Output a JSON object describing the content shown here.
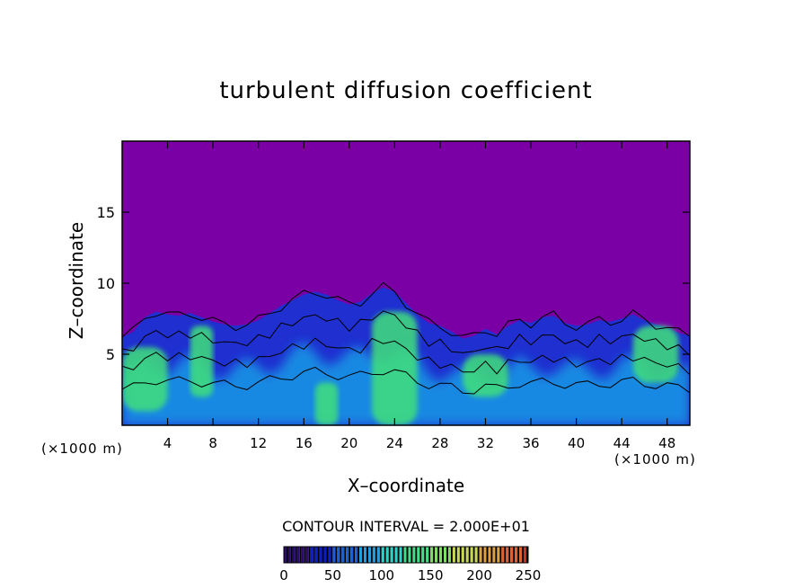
{
  "chart_data": {
    "type": "heatmap",
    "title": "turbulent diffusion coefficient",
    "xlabel": "X–coordinate",
    "ylabel": "Z–coordinate",
    "x_unit_label_left": "(×1000 m)",
    "x_unit_label_right": "(×1000 m)",
    "xlim": [
      0,
      50
    ],
    "ylim": [
      0,
      20
    ],
    "x_ticks": [
      4,
      8,
      12,
      16,
      20,
      24,
      28,
      32,
      36,
      40,
      44,
      48
    ],
    "y_ticks": [
      5,
      10,
      15
    ],
    "contour_interval_label": "CONTOUR INTERVAL = 2.000E+01",
    "colorbar": {
      "min": 0,
      "max": 250,
      "ticks": [
        0,
        50,
        100,
        150,
        200,
        250
      ],
      "colors": [
        "#2a0a6e",
        "#0b1fc8",
        "#1a5fd8",
        "#1ea0e0",
        "#2bd3c8",
        "#3ee08a",
        "#7fe060",
        "#c8d850",
        "#e0a040",
        "#e06030",
        "#c83020"
      ]
    },
    "colors": {
      "background": "#7a00a6",
      "low": "#1f2fd0",
      "mid": "#18a8e8",
      "high": "#3fe07a"
    },
    "turbulent_layer_top": [
      [
        0,
        6.2
      ],
      [
        1,
        6.6
      ],
      [
        2,
        7.6
      ],
      [
        3,
        8.0
      ],
      [
        4,
        7.8
      ],
      [
        5,
        7.7
      ],
      [
        6,
        7.9
      ],
      [
        7,
        7.6
      ],
      [
        8,
        7.3
      ],
      [
        9,
        7.1
      ],
      [
        10,
        7.0
      ],
      [
        11,
        7.1
      ],
      [
        12,
        7.4
      ],
      [
        13,
        7.9
      ],
      [
        14,
        8.4
      ],
      [
        15,
        8.8
      ],
      [
        16,
        9.2
      ],
      [
        17,
        9.4
      ],
      [
        18,
        9.2
      ],
      [
        19,
        8.8
      ],
      [
        20,
        8.5
      ],
      [
        21,
        8.7
      ],
      [
        22,
        9.3
      ],
      [
        23,
        9.7
      ],
      [
        24,
        9.4
      ],
      [
        25,
        8.6
      ],
      [
        26,
        7.8
      ],
      [
        27,
        7.2
      ],
      [
        28,
        7.0
      ],
      [
        29,
        6.6
      ],
      [
        30,
        6.1
      ],
      [
        31,
        6.3
      ],
      [
        32,
        6.8
      ],
      [
        33,
        6.4
      ],
      [
        34,
        7.0
      ],
      [
        35,
        7.4
      ],
      [
        36,
        7.2
      ],
      [
        37,
        7.6
      ],
      [
        38,
        7.7
      ],
      [
        39,
        7.2
      ],
      [
        40,
        7.0
      ],
      [
        41,
        7.1
      ],
      [
        42,
        7.4
      ],
      [
        43,
        7.3
      ],
      [
        44,
        7.5
      ],
      [
        45,
        7.8
      ],
      [
        46,
        7.4
      ],
      [
        47,
        7.1
      ],
      [
        48,
        6.9
      ],
      [
        49,
        6.5
      ],
      [
        50,
        6.3
      ]
    ],
    "high_value_regions": [
      {
        "x_range": [
          0,
          4
        ],
        "z_range": [
          1,
          5.5
        ]
      },
      {
        "x_range": [
          6,
          8
        ],
        "z_range": [
          2,
          7
        ]
      },
      {
        "x_range": [
          17,
          19
        ],
        "z_range": [
          0,
          3
        ]
      },
      {
        "x_range": [
          22,
          26
        ],
        "z_range": [
          0,
          8
        ]
      },
      {
        "x_range": [
          30,
          34
        ],
        "z_range": [
          2,
          5
        ]
      },
      {
        "x_range": [
          45,
          49
        ],
        "z_range": [
          3,
          7
        ]
      }
    ]
  }
}
